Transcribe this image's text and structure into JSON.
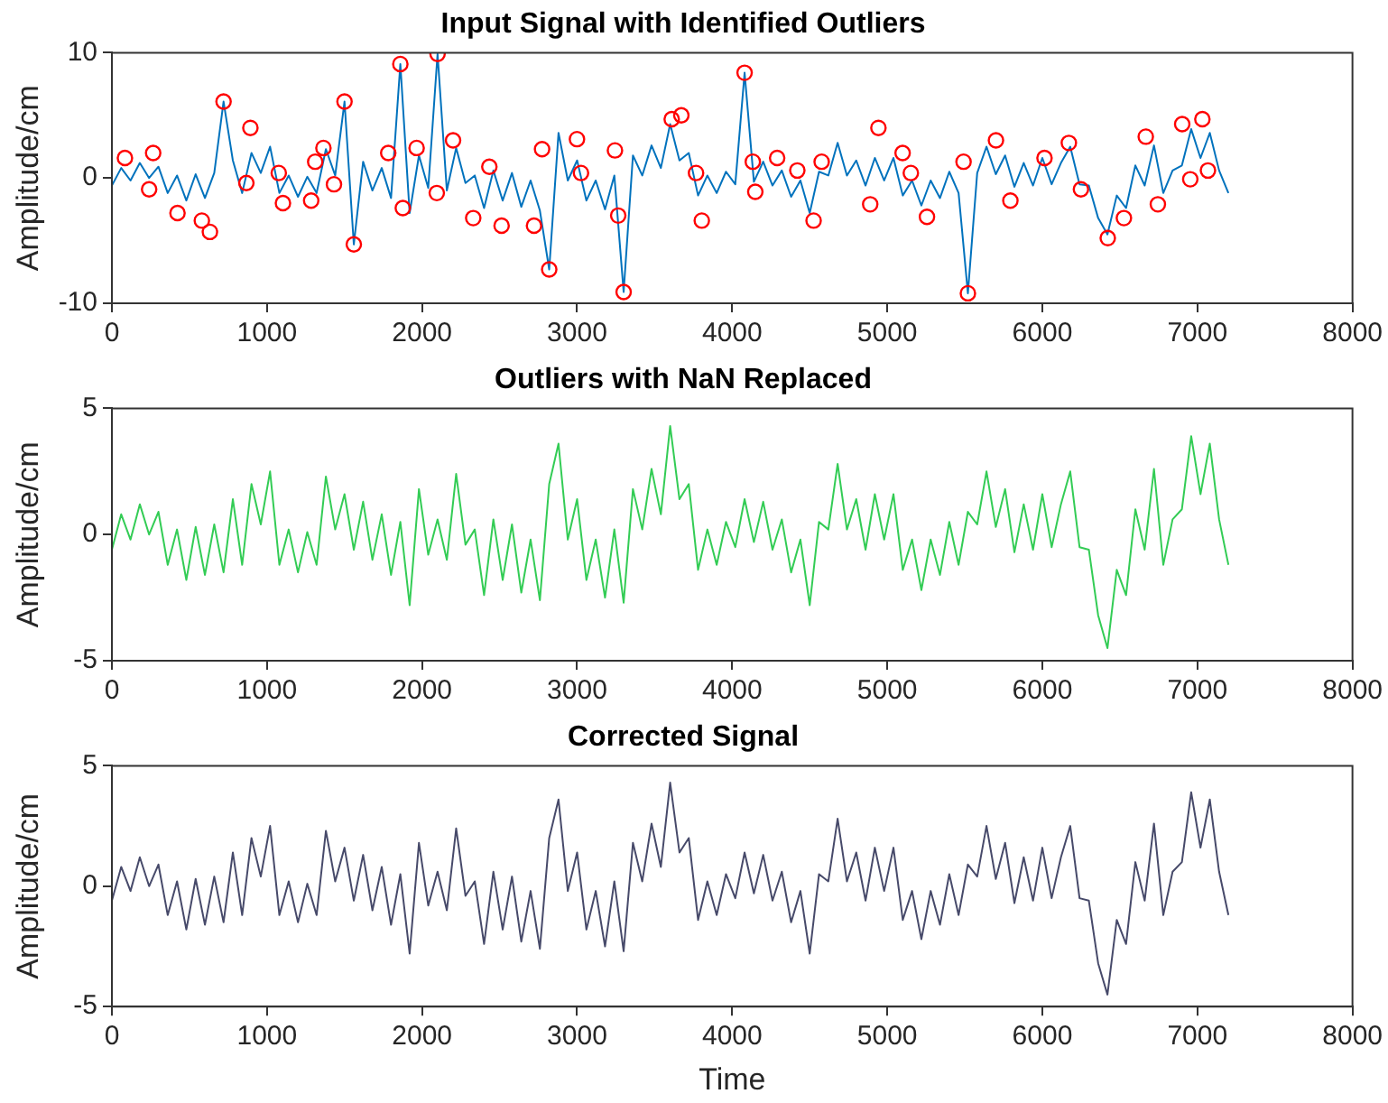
{
  "chart_data": [
    {
      "type": "line",
      "title": "Input Signal with Identified Outliers",
      "ylabel": "Amplitude/cm",
      "grid": false,
      "xlim": [
        0,
        8000
      ],
      "xticks": [
        0,
        1000,
        2000,
        3000,
        4000,
        5000,
        6000,
        7000,
        8000
      ],
      "ylim": [
        -10,
        10
      ],
      "yticks": [
        -10,
        0,
        10
      ],
      "x": [
        0,
        60,
        120,
        180,
        240,
        300,
        360,
        420,
        480,
        540,
        600,
        660,
        720,
        780,
        840,
        900,
        960,
        1020,
        1080,
        1140,
        1200,
        1260,
        1320,
        1380,
        1440,
        1500,
        1560,
        1620,
        1680,
        1740,
        1800,
        1860,
        1920,
        1980,
        2040,
        2100,
        2160,
        2220,
        2280,
        2340,
        2400,
        2460,
        2520,
        2580,
        2640,
        2700,
        2760,
        2820,
        2880,
        2940,
        3000,
        3060,
        3120,
        3180,
        3240,
        3300,
        3360,
        3420,
        3480,
        3540,
        3600,
        3660,
        3720,
        3780,
        3840,
        3900,
        3960,
        4020,
        4080,
        4140,
        4200,
        4260,
        4320,
        4380,
        4440,
        4500,
        4560,
        4620,
        4680,
        4740,
        4800,
        4860,
        4920,
        4980,
        5040,
        5100,
        5160,
        5220,
        5280,
        5340,
        5400,
        5460,
        5520,
        5580,
        5640,
        5700,
        5760,
        5820,
        5880,
        5940,
        6000,
        6060,
        6120,
        6180,
        6240,
        6300,
        6360,
        6420,
        6480,
        6540,
        6600,
        6660,
        6720,
        6780,
        6840,
        6900,
        6960,
        7020,
        7080,
        7140,
        7200
      ],
      "series": [
        {
          "type": "line",
          "color": "#0072bd",
          "values": [
            -0.6,
            0.8,
            -0.2,
            1.2,
            0.0,
            0.9,
            -1.2,
            0.2,
            -1.8,
            0.3,
            -1.6,
            0.4,
            6.1,
            1.4,
            -1.2,
            2.0,
            0.4,
            2.5,
            -1.2,
            0.2,
            -1.5,
            0.1,
            -1.2,
            2.3,
            0.2,
            6.1,
            -5.3,
            1.3,
            -1.0,
            0.8,
            -1.6,
            9.1,
            -2.8,
            1.8,
            -0.8,
            9.9,
            -1.0,
            2.4,
            -0.4,
            0.2,
            -2.4,
            0.6,
            -1.8,
            0.4,
            -2.3,
            -0.2,
            -2.6,
            -7.3,
            3.6,
            -0.2,
            1.4,
            -1.8,
            -0.2,
            -2.5,
            0.2,
            -9.1,
            1.8,
            0.2,
            2.6,
            0.8,
            4.3,
            1.4,
            2.0,
            -1.4,
            0.2,
            -1.2,
            0.5,
            -0.5,
            8.4,
            -0.3,
            1.3,
            -0.6,
            0.6,
            -1.5,
            -0.2,
            -2.8,
            0.5,
            0.2,
            2.8,
            0.2,
            1.4,
            -0.6,
            1.6,
            -0.2,
            1.6,
            -1.4,
            -0.2,
            -2.2,
            -0.2,
            -1.6,
            0.5,
            -1.2,
            -9.2,
            0.4,
            2.5,
            0.3,
            1.8,
            -0.7,
            1.2,
            -0.6,
            1.6,
            -0.5,
            1.2,
            2.5,
            -0.5,
            -0.6,
            -3.2,
            -4.5,
            -1.4,
            -2.4,
            1.0,
            -0.6,
            2.6,
            -1.2,
            0.6,
            1.0,
            3.9,
            1.6,
            3.6,
            0.6,
            -1.2
          ]
        },
        {
          "type": "scatter",
          "color": "#ff0000",
          "marker": "circle",
          "x": [
            84,
            266,
            240,
            423,
            580,
            632,
            720,
            893,
            867,
            1076,
            1103,
            1285,
            1311,
            1364,
            1432,
            1500,
            1560,
            1782,
            1860,
            1876,
            1965,
            2100,
            2095,
            2200,
            2330,
            2434,
            2513,
            2722,
            2774,
            2820,
            2999,
            3025,
            3244,
            3265,
            3300,
            3610,
            3672,
            3767,
            3804,
            4080,
            4133,
            4149,
            4290,
            4420,
            4525,
            4577,
            4890,
            4943,
            5099,
            5152,
            5256,
            5520,
            5492,
            5701,
            5794,
            6014,
            6171,
            6249,
            6422,
            6526,
            6667,
            6745,
            6902,
            7032,
            7068,
            6954
          ],
          "values": [
            1.6,
            2.0,
            -0.9,
            -2.8,
            -3.4,
            -4.3,
            6.1,
            4.0,
            -0.4,
            0.4,
            -2.0,
            -1.8,
            1.3,
            2.4,
            -0.5,
            6.1,
            -5.3,
            2.0,
            9.1,
            -2.4,
            2.4,
            9.9,
            -1.2,
            3.0,
            -3.2,
            0.9,
            -3.8,
            -3.8,
            2.3,
            -7.3,
            3.1,
            0.4,
            2.2,
            -3.0,
            -9.1,
            4.7,
            5.0,
            0.4,
            -3.4,
            8.4,
            1.3,
            -1.1,
            1.6,
            0.6,
            -3.4,
            1.3,
            -2.1,
            4.0,
            2.0,
            0.4,
            -3.1,
            -9.2,
            1.3,
            3.0,
            -1.8,
            1.6,
            2.8,
            -0.9,
            -4.8,
            -3.2,
            3.3,
            -2.1,
            4.3,
            4.7,
            0.6,
            -0.1
          ]
        }
      ]
    },
    {
      "type": "line",
      "title": "Outliers with NaN Replaced",
      "ylabel": "Amplitude/cm",
      "grid": false,
      "xlim": [
        0,
        8000
      ],
      "xticks": [
        0,
        1000,
        2000,
        3000,
        4000,
        5000,
        6000,
        7000,
        8000
      ],
      "ylim": [
        -5,
        5
      ],
      "yticks": [
        -5,
        0,
        5
      ],
      "x": [
        0,
        60,
        120,
        180,
        240,
        300,
        360,
        420,
        480,
        540,
        600,
        660,
        720,
        780,
        840,
        900,
        960,
        1020,
        1080,
        1140,
        1200,
        1260,
        1320,
        1380,
        1440,
        1500,
        1560,
        1620,
        1680,
        1740,
        1800,
        1860,
        1920,
        1980,
        2040,
        2100,
        2160,
        2220,
        2280,
        2340,
        2400,
        2460,
        2520,
        2580,
        2640,
        2700,
        2760,
        2820,
        2880,
        2940,
        3000,
        3060,
        3120,
        3180,
        3240,
        3300,
        3360,
        3420,
        3480,
        3540,
        3600,
        3660,
        3720,
        3780,
        3840,
        3900,
        3960,
        4020,
        4080,
        4140,
        4200,
        4260,
        4320,
        4380,
        4440,
        4500,
        4560,
        4620,
        4680,
        4740,
        4800,
        4860,
        4920,
        4980,
        5040,
        5100,
        5160,
        5220,
        5280,
        5340,
        5400,
        5460,
        5520,
        5580,
        5640,
        5700,
        5760,
        5820,
        5880,
        5940,
        6000,
        6060,
        6120,
        6180,
        6240,
        6300,
        6360,
        6420,
        6480,
        6540,
        6600,
        6660,
        6720,
        6780,
        6840,
        6900,
        6960,
        7020,
        7080,
        7140,
        7200
      ],
      "series": [
        {
          "type": "line",
          "color": "#33cc55",
          "values": [
            -0.6,
            0.8,
            -0.2,
            1.2,
            0.0,
            0.9,
            -1.2,
            0.2,
            -1.8,
            0.3,
            -1.6,
            0.4,
            -1.5,
            1.4,
            -1.2,
            2.0,
            0.4,
            2.5,
            -1.2,
            0.2,
            -1.5,
            0.1,
            -1.2,
            2.3,
            0.2,
            1.6,
            -0.6,
            1.3,
            -1.0,
            0.8,
            -1.6,
            0.5,
            -2.8,
            1.8,
            -0.8,
            0.6,
            -1.0,
            2.4,
            -0.4,
            0.2,
            -2.4,
            0.6,
            -1.8,
            0.4,
            -2.3,
            -0.2,
            -2.6,
            2.0,
            3.6,
            -0.2,
            1.4,
            -1.8,
            -0.2,
            -2.5,
            0.2,
            -2.7,
            1.8,
            0.2,
            2.6,
            0.8,
            4.3,
            1.4,
            2.0,
            -1.4,
            0.2,
            -1.2,
            0.5,
            -0.5,
            1.4,
            -0.3,
            1.3,
            -0.6,
            0.6,
            -1.5,
            -0.2,
            -2.8,
            0.5,
            0.2,
            2.8,
            0.2,
            1.4,
            -0.6,
            1.6,
            -0.2,
            1.6,
            -1.4,
            -0.2,
            -2.2,
            -0.2,
            -1.6,
            0.5,
            -1.2,
            0.9,
            0.4,
            2.5,
            0.3,
            1.8,
            -0.7,
            1.2,
            -0.6,
            1.6,
            -0.5,
            1.2,
            2.5,
            -0.5,
            -0.6,
            -3.2,
            -4.5,
            -1.4,
            -2.4,
            1.0,
            -0.6,
            2.6,
            -1.2,
            0.6,
            1.0,
            3.9,
            1.6,
            3.6,
            0.6,
            -1.2
          ]
        }
      ]
    },
    {
      "type": "line",
      "title": "Corrected Signal",
      "xlabel": "Time",
      "ylabel": "Amplitude/cm",
      "grid": false,
      "xlim": [
        0,
        8000
      ],
      "xticks": [
        0,
        1000,
        2000,
        3000,
        4000,
        5000,
        6000,
        7000,
        8000
      ],
      "ylim": [
        -5,
        5
      ],
      "yticks": [
        -5,
        0,
        5
      ],
      "x": [
        0,
        60,
        120,
        180,
        240,
        300,
        360,
        420,
        480,
        540,
        600,
        660,
        720,
        780,
        840,
        900,
        960,
        1020,
        1080,
        1140,
        1200,
        1260,
        1320,
        1380,
        1440,
        1500,
        1560,
        1620,
        1680,
        1740,
        1800,
        1860,
        1920,
        1980,
        2040,
        2100,
        2160,
        2220,
        2280,
        2340,
        2400,
        2460,
        2520,
        2580,
        2640,
        2700,
        2760,
        2820,
        2880,
        2940,
        3000,
        3060,
        3120,
        3180,
        3240,
        3300,
        3360,
        3420,
        3480,
        3540,
        3600,
        3660,
        3720,
        3780,
        3840,
        3900,
        3960,
        4020,
        4080,
        4140,
        4200,
        4260,
        4320,
        4380,
        4440,
        4500,
        4560,
        4620,
        4680,
        4740,
        4800,
        4860,
        4920,
        4980,
        5040,
        5100,
        5160,
        5220,
        5280,
        5340,
        5400,
        5460,
        5520,
        5580,
        5640,
        5700,
        5760,
        5820,
        5880,
        5940,
        6000,
        6060,
        6120,
        6180,
        6240,
        6300,
        6360,
        6420,
        6480,
        6540,
        6600,
        6660,
        6720,
        6780,
        6840,
        6900,
        6960,
        7020,
        7080,
        7140,
        7200
      ],
      "series": [
        {
          "type": "line",
          "color": "#474a6a",
          "values": [
            -0.6,
            0.8,
            -0.2,
            1.2,
            0.0,
            0.9,
            -1.2,
            0.2,
            -1.8,
            0.3,
            -1.6,
            0.4,
            -1.5,
            1.4,
            -1.2,
            2.0,
            0.4,
            2.5,
            -1.2,
            0.2,
            -1.5,
            0.1,
            -1.2,
            2.3,
            0.2,
            1.6,
            -0.6,
            1.3,
            -1.0,
            0.8,
            -1.6,
            0.5,
            -2.8,
            1.8,
            -0.8,
            0.6,
            -1.0,
            2.4,
            -0.4,
            0.2,
            -2.4,
            0.6,
            -1.8,
            0.4,
            -2.3,
            -0.2,
            -2.6,
            2.0,
            3.6,
            -0.2,
            1.4,
            -1.8,
            -0.2,
            -2.5,
            0.2,
            -2.7,
            1.8,
            0.2,
            2.6,
            0.8,
            4.3,
            1.4,
            2.0,
            -1.4,
            0.2,
            -1.2,
            0.5,
            -0.5,
            1.4,
            -0.3,
            1.3,
            -0.6,
            0.6,
            -1.5,
            -0.2,
            -2.8,
            0.5,
            0.2,
            2.8,
            0.2,
            1.4,
            -0.6,
            1.6,
            -0.2,
            1.6,
            -1.4,
            -0.2,
            -2.2,
            -0.2,
            -1.6,
            0.5,
            -1.2,
            0.9,
            0.4,
            2.5,
            0.3,
            1.8,
            -0.7,
            1.2,
            -0.6,
            1.6,
            -0.5,
            1.2,
            2.5,
            -0.5,
            -0.6,
            -3.2,
            -4.5,
            -1.4,
            -2.4,
            1.0,
            -0.6,
            2.6,
            -1.2,
            0.6,
            1.0,
            3.9,
            1.6,
            3.6,
            0.6,
            -1.2
          ]
        }
      ]
    }
  ]
}
